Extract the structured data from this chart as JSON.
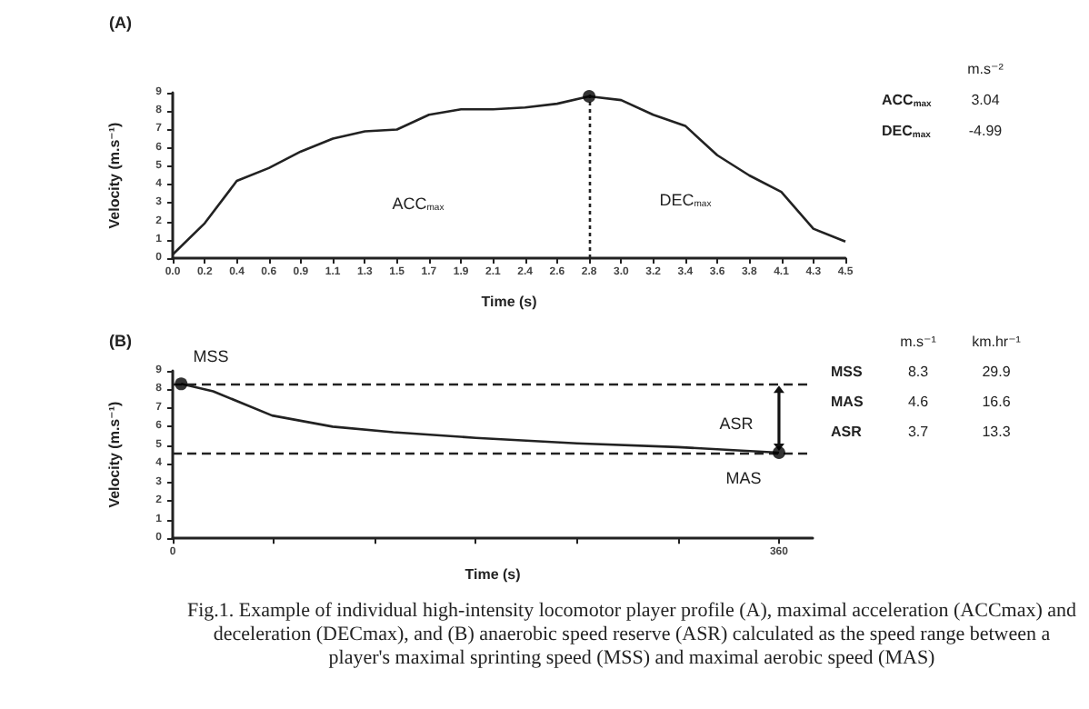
{
  "chart_data": [
    {
      "type": "line",
      "title": "(A)",
      "xlabel": "Time (s)",
      "ylabel": "Velocity (m.s⁻¹)",
      "categories": [
        "0.0",
        "0.2",
        "0.4",
        "0.6",
        "0.9",
        "1.1",
        "1.3",
        "1.5",
        "1.7",
        "1.9",
        "2.1",
        "2.4",
        "2.6",
        "2.8",
        "3.0",
        "3.2",
        "3.4",
        "3.6",
        "3.8",
        "4.1",
        "4.3",
        "4.5"
      ],
      "series": [
        {
          "color": "#222222",
          "values": [
            0.2,
            1.9,
            4.2,
            4.9,
            5.8,
            6.5,
            6.9,
            7.0,
            7.8,
            8.1,
            8.1,
            8.2,
            8.4,
            8.8,
            8.6,
            7.8,
            7.2,
            5.6,
            4.5,
            3.6,
            1.6,
            0.9
          ]
        },
        {
          "type": "scatter",
          "marker": "circle",
          "color": "#000000",
          "x": [
            "2.8"
          ],
          "values": [
            8.8
          ]
        }
      ],
      "ylim": [
        0,
        9
      ],
      "yticks": [
        0,
        1,
        2,
        3,
        4,
        5,
        6,
        7,
        8,
        9
      ],
      "marker": "none",
      "ref_lines": [
        {
          "axis": "x",
          "value": "2.8",
          "line_style": "dotted",
          "color": "#222222"
        }
      ],
      "annotations": [
        "ACC$_{max}$",
        "DEC$_{max}$"
      ]
    },
    {
      "type": "other",
      "categories": [
        "ACC$_{max}$",
        "DEC$_{max}$"
      ],
      "series": [
        {
          "name": "m.s⁻²",
          "values": [
            3.04,
            -4.99
          ]
        }
      ],
      "data_labels": true
    },
    {
      "type": "line",
      "title": "(B)",
      "xlabel": "Time (s)",
      "ylabel": "Velocity (m.s⁻¹)",
      "series": [
        {
          "color": "#222222",
          "x": [
            5,
            24,
            59,
            95,
            131,
            180,
            240,
            300,
            360
          ],
          "values": [
            8.3,
            7.9,
            6.6,
            6.0,
            5.7,
            5.4,
            5.1,
            4.9,
            4.6
          ]
        },
        {
          "type": "scatter",
          "marker": "circle",
          "color": "#000000",
          "x": [
            5,
            360
          ],
          "values": [
            8.3,
            4.6
          ]
        }
      ],
      "xlim": [
        0,
        380
      ],
      "xticks": [
        0,
        {
          "value": 60,
          "label": null
        },
        {
          "value": 120,
          "label": null
        },
        {
          "value": 180,
          "label": null
        },
        {
          "value": 240,
          "label": null
        },
        {
          "value": 300,
          "label": null
        },
        360
      ],
      "ylim": [
        0,
        9
      ],
      "yticks": [
        0,
        1,
        2,
        3,
        4,
        5,
        6,
        7,
        8,
        9
      ],
      "marker": "none",
      "ref_lines": [
        {
          "axis": "y",
          "value": 8.3,
          "line_style": "dashed",
          "color": "#222222"
        },
        {
          "axis": "y",
          "value": 4.6,
          "line_style": "dashed",
          "color": "#222222"
        }
      ],
      "annotations": [
        "MSS",
        "ASR",
        "MAS",
        "Fig.1. Example of individual high-intensity locomotor player profile (A), maximal acceleration (ACCmax) and deceleration (DECmax), and (B) anaerobic speed reserve (ASR) calculated as the speed range between a player's maximal sprinting speed (MSS) and maximal aerobic speed (MAS)"
      ]
    },
    {
      "type": "other",
      "categories": [
        "MSS",
        "MAS",
        "ASR"
      ],
      "series": [
        {
          "name": "m.s⁻¹",
          "values": [
            8.3,
            4.6,
            3.7
          ]
        },
        {
          "name": "km.hr⁻¹",
          "values": [
            29.9,
            16.6,
            13.3
          ]
        }
      ],
      "data_labels": true
    }
  ]
}
